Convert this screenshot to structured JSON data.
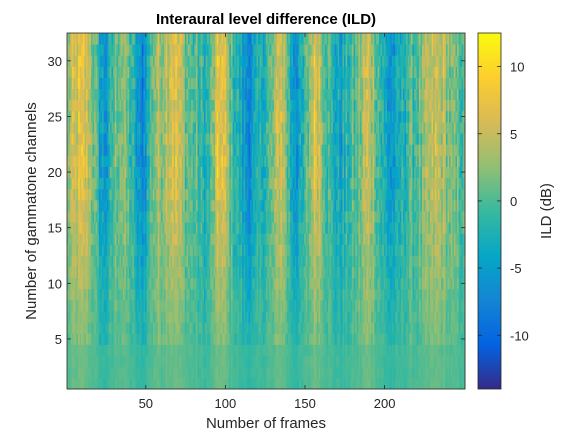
{
  "chart_data": {
    "type": "heatmap",
    "title": "Interaural level difference (ILD)",
    "xlabel": "Number of frames",
    "ylabel": "Number of gammatone channels",
    "xlim": [
      0.5,
      250.5
    ],
    "ylim": [
      0.5,
      32.5
    ],
    "xticks": [
      50,
      100,
      150,
      200
    ],
    "yticks": [
      5,
      10,
      15,
      20,
      25,
      30
    ],
    "n_frames": 250,
    "n_channels": 32,
    "colorbar": {
      "label": "ILD (dB)",
      "range": [
        -14,
        12.5
      ],
      "ticks": [
        -10,
        -5,
        0,
        5,
        10
      ],
      "colormap": "parula"
    },
    "colormap_stops": [
      "#352a87",
      "#0363e1",
      "#1485d4",
      "#06a7c6",
      "#38b99e",
      "#92bf73",
      "#d9ba56",
      "#fcce2e",
      "#f9fb0e"
    ],
    "column_bands": [
      {
        "center": 10,
        "width": 9,
        "amp": 6.5,
        "high_channels": 1.0
      },
      {
        "center": 24,
        "width": 6,
        "amp": -6.5,
        "high_channels": 1.0
      },
      {
        "center": 33,
        "width": 6,
        "amp": 3.5,
        "high_channels": 0.8
      },
      {
        "center": 47,
        "width": 5,
        "amp": -7.5,
        "high_channels": 0.9
      },
      {
        "center": 56,
        "width": 4,
        "amp": 3.5,
        "high_channels": 0.7
      },
      {
        "center": 67,
        "width": 7,
        "amp": 7.0,
        "high_channels": 1.0
      },
      {
        "center": 88,
        "width": 5,
        "amp": -3.5,
        "high_channels": 0.6
      },
      {
        "center": 97,
        "width": 5,
        "amp": 7.5,
        "high_channels": 1.0
      },
      {
        "center": 115,
        "width": 8,
        "amp": -6.5,
        "high_channels": 0.9
      },
      {
        "center": 135,
        "width": 4,
        "amp": 7.0,
        "high_channels": 0.9
      },
      {
        "center": 145,
        "width": 6,
        "amp": -5.5,
        "high_channels": 0.9
      },
      {
        "center": 157,
        "width": 5,
        "amp": 6.5,
        "high_channels": 1.0
      },
      {
        "center": 172,
        "width": 6,
        "amp": -4.5,
        "high_channels": 0.8
      },
      {
        "center": 190,
        "width": 5,
        "amp": 6.0,
        "high_channels": 0.8
      },
      {
        "center": 205,
        "width": 7,
        "amp": -6.0,
        "high_channels": 0.9
      },
      {
        "center": 233,
        "width": 8,
        "amp": 5.0,
        "high_channels": 0.9
      }
    ],
    "note_low_channels_near_zero": true
  }
}
